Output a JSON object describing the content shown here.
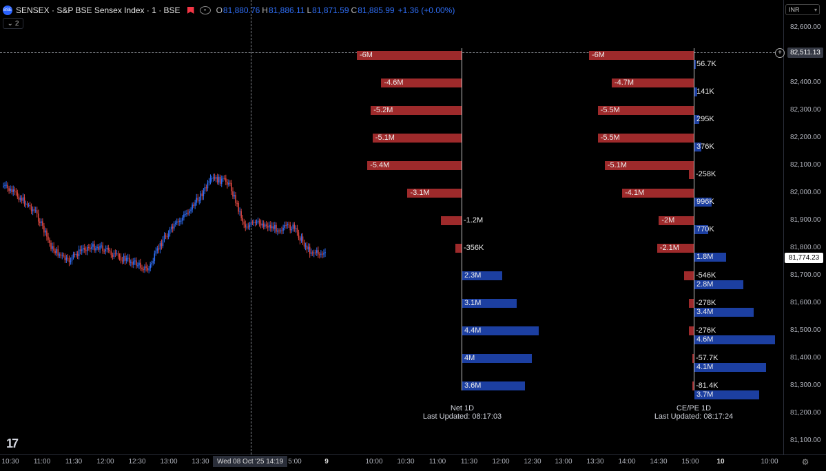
{
  "header": {
    "symbol_icon": "sensex-logo-icon",
    "symbol_badge": "BSE",
    "title": "SENSEX · S&P BSE Sensex Index · 1 · BSE",
    "ohlc": {
      "o_label": "O",
      "o_value": "81,880.76",
      "h_label": "H",
      "h_value": "81,886.11",
      "l_label": "L",
      "l_value": "81,871.59",
      "c_label": "C",
      "c_value": "81,885.99",
      "change": "+1.36 (+0.00%)"
    },
    "indicators_count": "2",
    "currency": "INR"
  },
  "colors": {
    "negative_bar": "#9e2a2b",
    "positive_bar": "#1c3fa1",
    "up_candle": "#2f6ef5",
    "down_candle": "#d9463f",
    "background": "#000000"
  },
  "price_axis": {
    "labels": [
      "82,600.00",
      "82,500.00",
      "82,400.00",
      "82,300.00",
      "82,200.00",
      "82,100.00",
      "82,000.00",
      "81,900.00",
      "81,800.00",
      "81,700.00",
      "81,600.00",
      "81,500.00",
      "81,400.00",
      "81,300.00",
      "81,200.00",
      "81,100.00"
    ],
    "cursor_price": "82,511.13",
    "last_price": "81,774.23"
  },
  "time_axis": {
    "labels": [
      "10:30",
      "11:00",
      "11:30",
      "12:00",
      "12:30",
      "13:00",
      "13:30",
      "10:00",
      "10:30",
      "11:00",
      "11:30",
      "12:00",
      "12:30",
      "13:00",
      "13:30",
      "14:00",
      "14:30",
      "15:00",
      "10:00"
    ],
    "cursor_date": "Wed 08 Oct '25  14:19",
    "partial_label": "5:00",
    "day_label_9": "9",
    "day_label_10": "10"
  },
  "chart_data": [
    {
      "type": "line",
      "title": "",
      "xlabel": "",
      "ylabel": "",
      "ylim": [
        81050,
        82650
      ],
      "x": [
        "10:30",
        "10:45",
        "11:00",
        "11:15",
        "11:30",
        "11:45",
        "12:00",
        "12:15",
        "12:30",
        "12:45",
        "13:00",
        "13:15",
        "13:30",
        "13:45",
        "14:00",
        "14:15",
        "14:30",
        "14:45",
        "15:00",
        "15:15",
        "15:25"
      ],
      "values": [
        82025,
        81985,
        81930,
        81800,
        81750,
        81800,
        81805,
        81770,
        81750,
        81720,
        81840,
        81900,
        81970,
        82050,
        82040,
        81880,
        81890,
        81870,
        81875,
        81790,
        81775
      ]
    },
    {
      "type": "bar",
      "title": "Net 1D",
      "subtitle": "Last Updated: 08:17:03",
      "categories": [
        "82,500",
        "82,400",
        "82,300",
        "82,200",
        "82,100",
        "82,000",
        "81,900",
        "81,800",
        "81,700",
        "81,600",
        "81,500",
        "81,400",
        "81,300"
      ],
      "values": [
        -6000000,
        -4600000,
        -5200000,
        -5100000,
        -5400000,
        -3100000,
        -1200000,
        -356000,
        2300000,
        3100000,
        4400000,
        4000000,
        3600000
      ],
      "labels": [
        "-6M",
        "-4.6M",
        "-5.2M",
        "-5.1M",
        "-5.4M",
        "-3.1M",
        "-1.2M",
        "-356K",
        "2.3M",
        "3.1M",
        "4.4M",
        "4M",
        "3.6M"
      ]
    },
    {
      "type": "bar",
      "title": "CE/PE 1D",
      "subtitle": "Last Updated: 08:17:24",
      "categories": [
        "82,500",
        "82,400",
        "82,300",
        "82,200",
        "82,100",
        "82,000",
        "81,900",
        "81,800",
        "81,700",
        "81,600",
        "81,500",
        "81,400",
        "81,300"
      ],
      "series": [
        {
          "name": "CE",
          "values": [
            -6000000,
            -4700000,
            -5500000,
            -5500000,
            -5100000,
            -4100000,
            -2000000,
            -2100000,
            -546000,
            -278000,
            -276000,
            -57700,
            -81400
          ],
          "labels": [
            "-6M",
            "-4.7M",
            "-5.5M",
            "-5.5M",
            "-5.1M",
            "-4.1M",
            "-2M",
            "-2.1M",
            "-546K",
            "-278K",
            "-276K",
            "-57.7K",
            "-81.4K"
          ]
        },
        {
          "name": "PE",
          "values": [
            56700,
            141000,
            295000,
            376000,
            -258000,
            996000,
            770000,
            1800000,
            2800000,
            3400000,
            4600000,
            4100000,
            3700000
          ],
          "labels": [
            "56.7K",
            "141K",
            "295K",
            "376K",
            "-258K",
            "996K",
            "770K",
            "1.8M",
            "2.8M",
            "3.4M",
            "4.6M",
            "4.1M",
            "3.7M"
          ]
        }
      ]
    }
  ]
}
